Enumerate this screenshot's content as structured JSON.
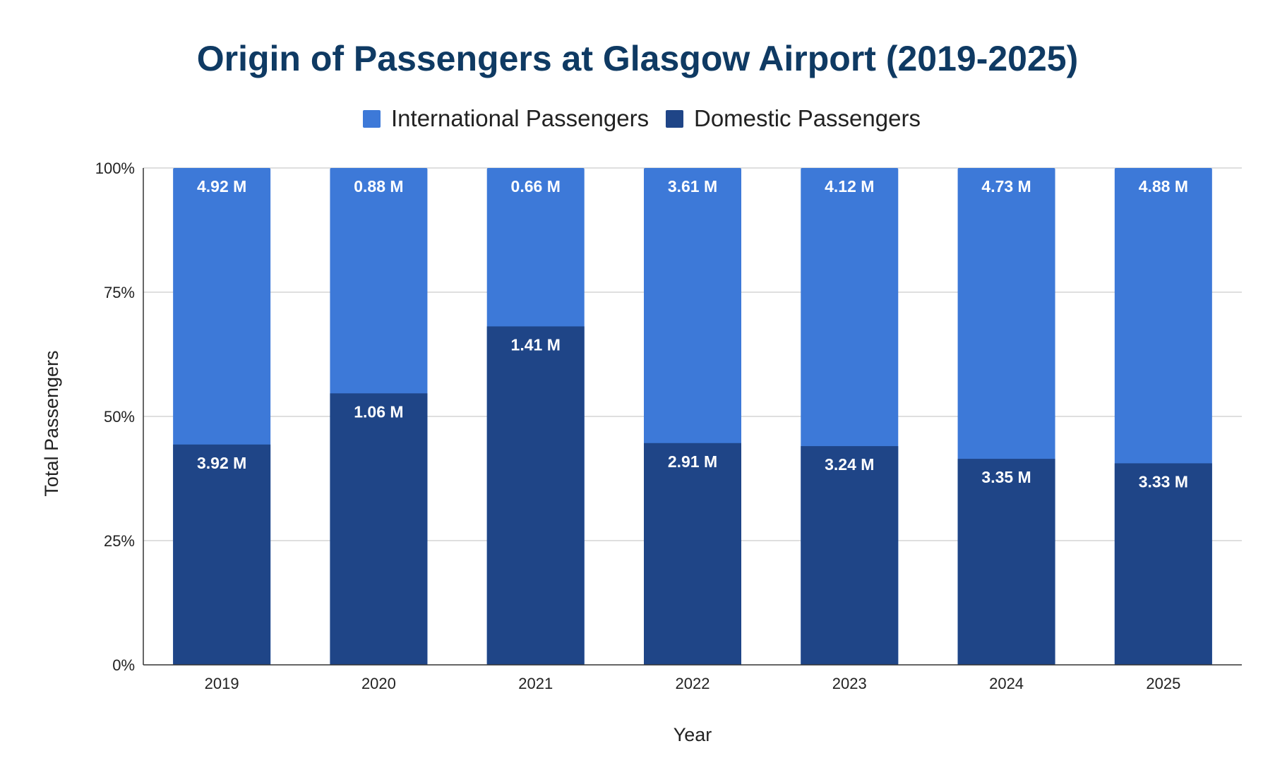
{
  "chart_data": {
    "type": "bar",
    "stacked": true,
    "normalized": "percent",
    "title": "Origin of Passengers at Glasgow Airport (2019-2025)",
    "xlabel": "Year",
    "ylabel": "Total Passengers",
    "categories": [
      "2019",
      "2020",
      "2021",
      "2022",
      "2023",
      "2024",
      "2025"
    ],
    "series": [
      {
        "name": "Domestic Passengers",
        "color": "#1f4587",
        "values": [
          3.92,
          1.06,
          1.41,
          2.91,
          3.24,
          3.35,
          3.33
        ],
        "labels": [
          "3.92 M",
          "1.06 M",
          "1.41 M",
          "2.91 M",
          "3.24 M",
          "3.35 M",
          "3.33 M"
        ]
      },
      {
        "name": "International Passengers",
        "color": "#3d79d8",
        "values": [
          4.92,
          0.88,
          0.66,
          3.61,
          4.12,
          4.73,
          4.88
        ],
        "labels": [
          "4.92 M",
          "0.88 M",
          "0.66 M",
          "3.61 M",
          "4.12 M",
          "4.73 M",
          "4.88 M"
        ]
      }
    ],
    "legend": {
      "position": "top-center",
      "entries": [
        "International Passengers",
        "Domestic Passengers"
      ]
    },
    "yticks": [
      "0%",
      "25%",
      "50%",
      "75%",
      "100%"
    ],
    "ylim": [
      0,
      100
    ],
    "grid": true
  }
}
